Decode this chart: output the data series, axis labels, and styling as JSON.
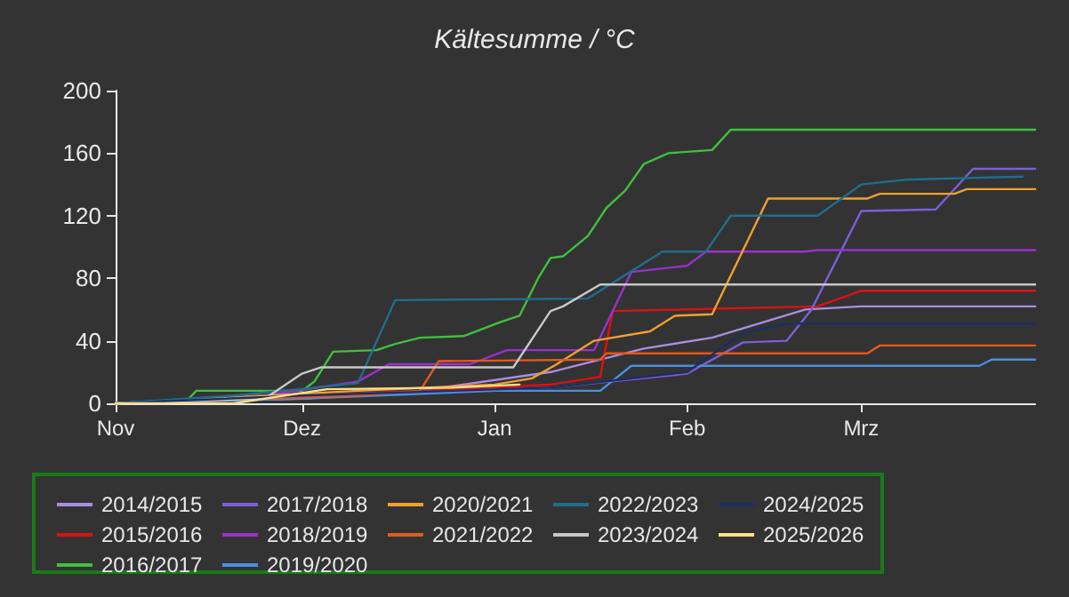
{
  "chart_data": {
    "type": "line",
    "title": "Kältesumme / °C",
    "xlim": [
      "2025-11-01",
      "2026-03-29"
    ],
    "xticks": [
      {
        "value": "2025-11-01",
        "label": "Nov"
      },
      {
        "value": "2025-12-01",
        "label": "Dez"
      },
      {
        "value": "2026-01-01",
        "label": "Jan"
      },
      {
        "value": "2026-02-01",
        "label": "Feb"
      },
      {
        "value": "2026-03-01",
        "label": "Mrz"
      }
    ],
    "ylim": [
      0,
      200
    ],
    "yticks": [
      0,
      40,
      80,
      120,
      160,
      200
    ],
    "grid": false,
    "legend": "bottom",
    "marker": "none",
    "line_style": "solid",
    "series": [
      {
        "name": "2014/2015",
        "color": "#a98ee0",
        "x": [
          "2025-11-01",
          "2025-12-01",
          "2025-12-20",
          "2026-01-10",
          "2026-01-25",
          "2026-02-05",
          "2026-02-20",
          "2026-03-01",
          "2026-03-29"
        ],
        "values": [
          0,
          3,
          8,
          20,
          35,
          42,
          60,
          62,
          62
        ]
      },
      {
        "name": "2015/2016",
        "color": "#e01010",
        "x": [
          "2025-11-01",
          "2025-12-01",
          "2025-12-20",
          "2026-01-10",
          "2026-01-18",
          "2026-01-20",
          "2026-02-22",
          "2026-03-01",
          "2026-03-29"
        ],
        "values": [
          0,
          5,
          8,
          12,
          17,
          59,
          62,
          72,
          72
        ]
      },
      {
        "name": "2016/2017",
        "color": "#3fc13f",
        "x": [
          "2025-11-01",
          "2025-11-12",
          "2025-11-14",
          "2025-12-01",
          "2025-12-03",
          "2025-12-06",
          "2025-12-13",
          "2025-12-16",
          "2025-12-20",
          "2025-12-27",
          "2026-01-02",
          "2026-01-05",
          "2026-01-08",
          "2026-01-10",
          "2026-01-12",
          "2026-01-16",
          "2026-01-19",
          "2026-01-22",
          "2026-01-25",
          "2026-01-29",
          "2026-02-05",
          "2026-02-08",
          "2026-03-29"
        ],
        "values": [
          0,
          0,
          8,
          8,
          14,
          33,
          34,
          38,
          42,
          43,
          52,
          56,
          80,
          93,
          94,
          107,
          125,
          136,
          153,
          160,
          162,
          175,
          175
        ]
      },
      {
        "name": "2017/2018",
        "color": "#7b5fd6",
        "x": [
          "2025-11-01",
          "2025-12-01",
          "2026-01-10",
          "2026-02-01",
          "2026-02-10",
          "2026-02-17",
          "2026-02-21",
          "2026-03-01",
          "2026-03-13",
          "2026-03-19",
          "2026-03-29"
        ],
        "values": [
          0,
          5,
          10,
          19,
          39,
          40,
          60,
          123,
          124,
          150,
          150
        ]
      },
      {
        "name": "2018/2019",
        "color": "#9b30d0",
        "x": [
          "2025-11-01",
          "2025-11-25",
          "2025-12-10",
          "2025-12-15",
          "2025-12-28",
          "2026-01-03",
          "2026-01-17",
          "2026-01-23",
          "2026-02-01",
          "2026-02-04",
          "2026-02-20",
          "2026-02-22",
          "2026-03-29"
        ],
        "values": [
          0,
          5,
          14,
          25,
          25,
          34,
          34,
          84,
          88,
          97,
          97,
          98,
          98
        ]
      },
      {
        "name": "2019/2020",
        "color": "#4a8fe0",
        "x": [
          "2025-11-01",
          "2025-12-01",
          "2026-01-01",
          "2026-01-18",
          "2026-01-23",
          "2026-03-20",
          "2026-03-22",
          "2026-03-29"
        ],
        "values": [
          0,
          3,
          8,
          8,
          24,
          24,
          28,
          28
        ]
      },
      {
        "name": "2020/2021",
        "color": "#f0a030",
        "x": [
          "2025-11-01",
          "2025-12-10",
          "2026-01-01",
          "2026-01-07",
          "2026-01-11",
          "2026-01-17",
          "2026-01-26",
          "2026-01-30",
          "2026-02-05",
          "2026-02-14",
          "2026-03-02",
          "2026-03-04",
          "2026-03-16",
          "2026-03-18",
          "2026-03-29"
        ],
        "values": [
          0,
          8,
          12,
          16,
          25,
          40,
          46,
          56,
          57,
          131,
          131,
          134,
          134,
          137,
          137
        ]
      },
      {
        "name": "2021/2022",
        "color": "#e05a20",
        "x": [
          "2025-11-01",
          "2025-12-10",
          "2025-12-20",
          "2025-12-23",
          "2026-01-18",
          "2026-01-19",
          "2026-03-02",
          "2026-03-04",
          "2026-03-29"
        ],
        "values": [
          0,
          5,
          8,
          27,
          28,
          32,
          32,
          37,
          37
        ]
      },
      {
        "name": "2022/2023",
        "color": "#1f6e8c",
        "x": [
          "2025-11-01",
          "2025-11-20",
          "2025-12-03",
          "2025-12-10",
          "2025-12-16",
          "2026-01-16",
          "2026-01-28",
          "2026-02-04",
          "2026-02-08",
          "2026-02-22",
          "2026-03-01",
          "2026-03-08",
          "2026-03-27"
        ],
        "values": [
          0,
          5,
          10,
          13,
          66,
          67,
          97,
          97,
          120,
          120,
          140,
          143,
          145
        ]
      },
      {
        "name": "2023/2024",
        "color": "#c8c8c8",
        "x": [
          "2025-11-01",
          "2025-11-25",
          "2025-12-01",
          "2025-12-04",
          "2026-01-04",
          "2026-01-10",
          "2026-01-12",
          "2026-01-18",
          "2026-03-29"
        ],
        "values": [
          0,
          3,
          19,
          23,
          23,
          59,
          62,
          76,
          76
        ]
      },
      {
        "name": "2024/2025",
        "color": "#1c2f60",
        "x": [
          "2025-11-01",
          "2025-12-01",
          "2026-01-10",
          "2026-02-01",
          "2026-02-10",
          "2026-02-17",
          "2026-03-29"
        ],
        "values": [
          0,
          5,
          10,
          20,
          45,
          51,
          51
        ]
      },
      {
        "name": "2025/2026",
        "color": "#ffe08a",
        "x": [
          "2025-11-01",
          "2025-11-20",
          "2025-12-05",
          "2025-12-25",
          "2026-01-05"
        ],
        "values": [
          0,
          0,
          9,
          10,
          12
        ]
      }
    ]
  }
}
